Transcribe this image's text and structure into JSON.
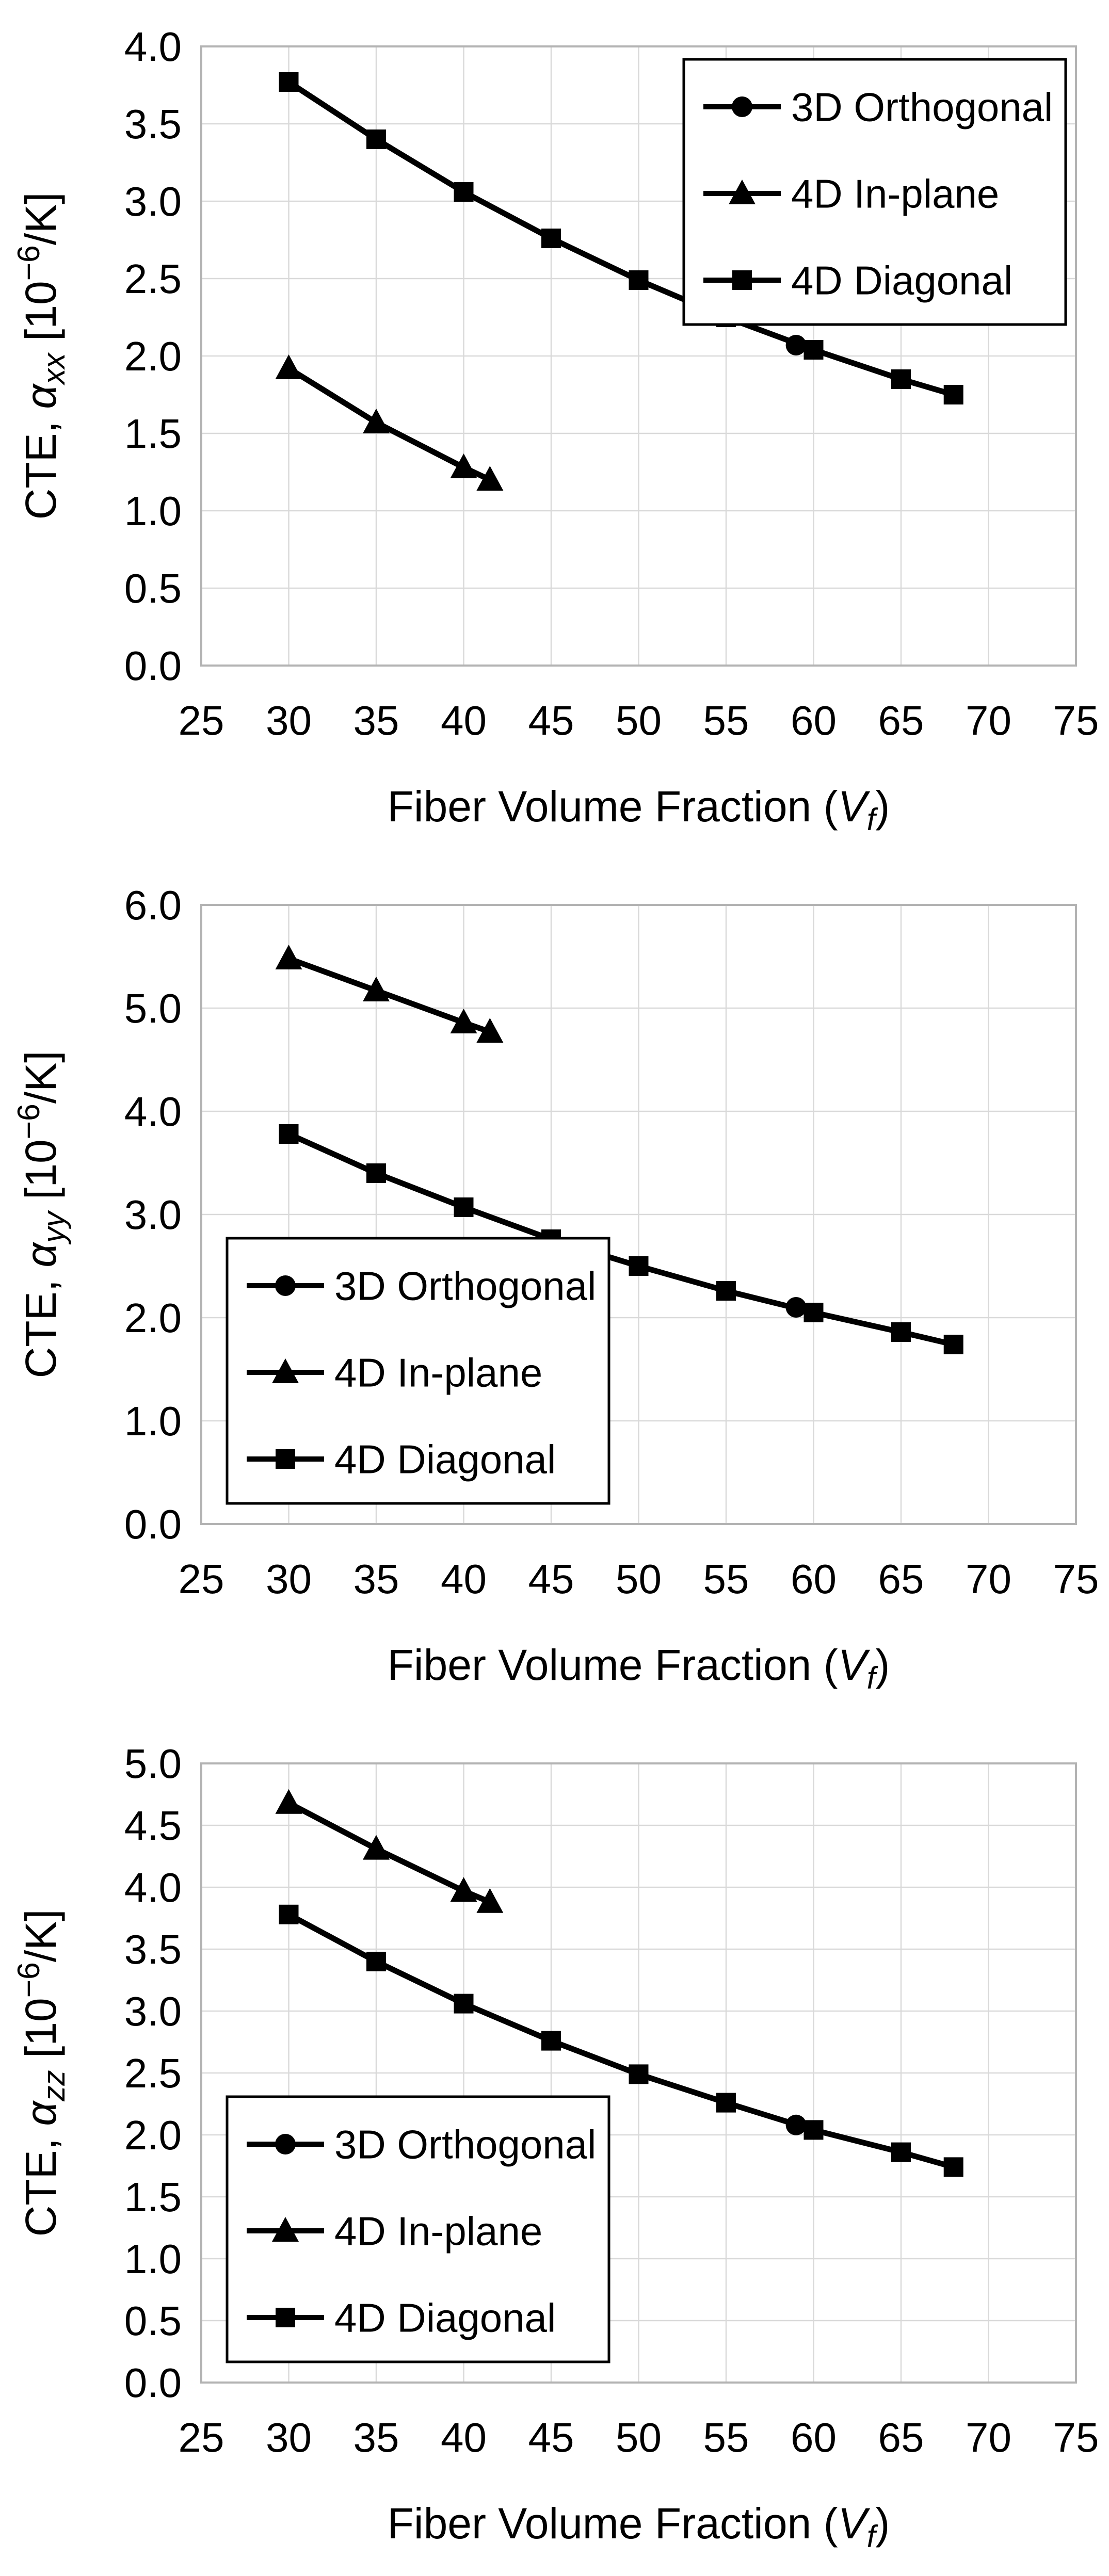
{
  "page": {
    "background": "#ffffff",
    "description_labels": {
      "legend_3d": "3D Orthogonal",
      "legend_4d_inplane": "4D In-plane",
      "legend_4d_diagonal": "4D Diagonal"
    }
  },
  "colors": {
    "series": "#000000",
    "grid": "#d9d9d9",
    "plot_border": "#b3b3b3",
    "legend_border": "#000000",
    "legend_fill": "#ffffff",
    "text": "#000000",
    "background": "#ffffff"
  },
  "chart_data": [
    {
      "id": "cte-alpha-xx",
      "type": "line",
      "ylabel_parts": [
        {
          "t": "CTE,  "
        },
        {
          "t": "α",
          "s": "i"
        },
        {
          "t": "xx",
          "s": "isub"
        },
        {
          "t": " [10"
        },
        {
          "t": "−6",
          "s": "sup"
        },
        {
          "t": "/K]"
        }
      ],
      "xlabel_parts": [
        {
          "t": "Fiber Volume Fraction ("
        },
        {
          "t": "V",
          "s": "i"
        },
        {
          "t": "f",
          "s": "isub"
        },
        {
          "t": ")"
        }
      ],
      "xlim": [
        25,
        75
      ],
      "xtick_step": 5,
      "ylim": [
        0,
        4
      ],
      "ytick_step": 0.5,
      "ytick_decimals": 1,
      "grid": true,
      "legend": {
        "position": "top-right",
        "entries": [
          {
            "label": "3D Orthogonal",
            "marker": "circle"
          },
          {
            "label": "4D In-plane",
            "marker": "triangle"
          },
          {
            "label": "4D Diagonal",
            "marker": "square"
          }
        ]
      },
      "series": [
        {
          "name": "4D In-plane",
          "marker": "triangle",
          "x": [
            30,
            35,
            40,
            41.5
          ],
          "y": [
            1.92,
            1.57,
            1.28,
            1.2
          ]
        },
        {
          "name": "4D Diagonal",
          "marker": "square",
          "x": [
            30,
            35,
            40,
            45,
            50,
            55,
            60,
            65,
            68
          ],
          "y": [
            3.77,
            3.4,
            3.06,
            2.76,
            2.49,
            2.25,
            2.04,
            1.85,
            1.75
          ]
        },
        {
          "name": "3D Orthogonal",
          "marker": "circle",
          "x": [
            59
          ],
          "y": [
            2.07
          ]
        }
      ]
    },
    {
      "id": "cte-alpha-yy",
      "type": "line",
      "ylabel_parts": [
        {
          "t": "CTE,  "
        },
        {
          "t": "α",
          "s": "i"
        },
        {
          "t": "yy",
          "s": "isub"
        },
        {
          "t": " [10"
        },
        {
          "t": "−6",
          "s": "sup"
        },
        {
          "t": "/K]"
        }
      ],
      "xlabel_parts": [
        {
          "t": "Fiber Volume Fraction ("
        },
        {
          "t": "V",
          "s": "i"
        },
        {
          "t": "f",
          "s": "isub"
        },
        {
          "t": ")"
        }
      ],
      "xlim": [
        25,
        75
      ],
      "xtick_step": 5,
      "ylim": [
        0,
        6
      ],
      "ytick_step": 1.0,
      "ytick_decimals": 1,
      "grid": true,
      "legend": {
        "position": "bottom-left",
        "entries": [
          {
            "label": "3D Orthogonal",
            "marker": "circle"
          },
          {
            "label": "4D In-plane",
            "marker": "triangle"
          },
          {
            "label": "4D Diagonal",
            "marker": "square"
          }
        ]
      },
      "series": [
        {
          "name": "4D In-plane",
          "marker": "triangle",
          "x": [
            30,
            35,
            40,
            41.5
          ],
          "y": [
            5.48,
            5.17,
            4.86,
            4.77
          ]
        },
        {
          "name": "4D Diagonal",
          "marker": "square",
          "x": [
            30,
            35,
            40,
            45,
            50,
            55,
            60,
            65,
            68
          ],
          "y": [
            3.78,
            3.4,
            3.07,
            2.76,
            2.5,
            2.26,
            2.05,
            1.86,
            1.74
          ]
        },
        {
          "name": "3D Orthogonal",
          "marker": "circle",
          "x": [
            59
          ],
          "y": [
            2.1
          ]
        }
      ]
    },
    {
      "id": "cte-alpha-zz",
      "type": "line",
      "ylabel_parts": [
        {
          "t": "CTE,  "
        },
        {
          "t": "α",
          "s": "i"
        },
        {
          "t": "zz",
          "s": "isub"
        },
        {
          "t": " [10"
        },
        {
          "t": "−6",
          "s": "sup"
        },
        {
          "t": "/K]"
        }
      ],
      "xlabel_parts": [
        {
          "t": "Fiber Volume Fraction ("
        },
        {
          "t": "V",
          "s": "i"
        },
        {
          "t": "f",
          "s": "isub"
        },
        {
          "t": ")"
        }
      ],
      "xlim": [
        25,
        75
      ],
      "xtick_step": 5,
      "ylim": [
        0,
        5
      ],
      "ytick_step": 0.5,
      "ytick_decimals": 1,
      "grid": true,
      "legend": {
        "position": "bottom-left",
        "entries": [
          {
            "label": "3D Orthogonal",
            "marker": "circle"
          },
          {
            "label": "4D In-plane",
            "marker": "triangle"
          },
          {
            "label": "4D Diagonal",
            "marker": "square"
          }
        ]
      },
      "series": [
        {
          "name": "4D In-plane",
          "marker": "triangle",
          "x": [
            30,
            35,
            40,
            41.5
          ],
          "y": [
            4.68,
            4.31,
            3.97,
            3.88
          ]
        },
        {
          "name": "4D Diagonal",
          "marker": "square",
          "x": [
            30,
            35,
            40,
            45,
            50,
            55,
            60,
            65,
            68
          ],
          "y": [
            3.78,
            3.4,
            3.06,
            2.76,
            2.49,
            2.26,
            2.04,
            1.86,
            1.74
          ]
        },
        {
          "name": "3D Orthogonal",
          "marker": "circle",
          "x": [
            59
          ],
          "y": [
            2.08
          ]
        }
      ]
    }
  ]
}
